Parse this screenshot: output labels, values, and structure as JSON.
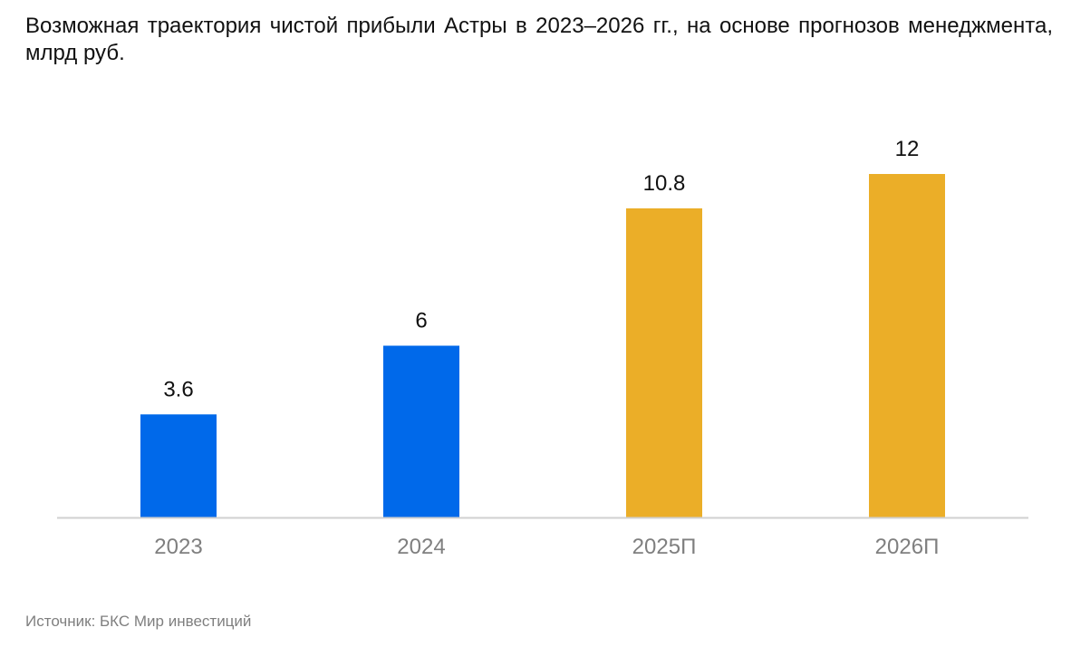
{
  "title": "Возможная траектория чистой прибыли Астры в 2023–2026 гг., на основе прогнозов менеджмента, млрд руб.",
  "source": "Источник: БКС Мир инвестиций",
  "colors": {
    "actual": "#0069ea",
    "forecast": "#ebae28",
    "axis": "#d0d0d0",
    "label": "#111111",
    "tick": "#7f7f7f"
  },
  "chart_data": {
    "type": "bar",
    "categories": [
      "2023",
      "2024",
      "2025П",
      "2026П"
    ],
    "values": [
      3.6,
      6,
      10.8,
      12
    ],
    "data_labels": [
      "3.6",
      "6",
      "10.8",
      "12"
    ],
    "forecast_flags": [
      false,
      false,
      true,
      true
    ],
    "ylim": [
      0,
      12
    ],
    "grid": false,
    "legend": "none"
  }
}
